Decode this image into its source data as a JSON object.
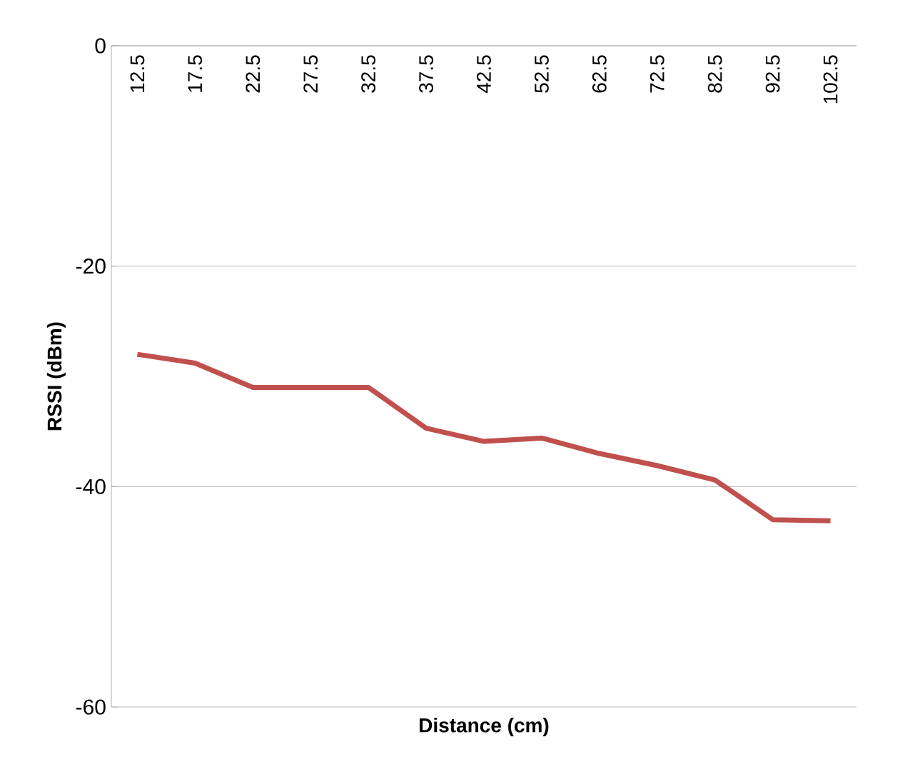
{
  "chart_data": {
    "type": "line",
    "xlabel": "Distance (cm)",
    "ylabel": "RSSI (dBm)",
    "categories": [
      "12.5",
      "17.5",
      "22.5",
      "27.5",
      "32.5",
      "37.5",
      "42.5",
      "52.5",
      "62.5",
      "72.5",
      "82.5",
      "92.5",
      "102.5"
    ],
    "values": [
      -28.0,
      -28.8,
      -31.0,
      -31.0,
      -31.0,
      -34.7,
      -35.9,
      -35.6,
      -37.0,
      -38.1,
      -39.4,
      -43.0,
      -43.1
    ],
    "color": "#c0504d",
    "marker": "none",
    "ylim": [
      -60,
      0
    ],
    "yticks": [
      -60,
      -40,
      -20,
      0
    ],
    "grid": "y"
  }
}
